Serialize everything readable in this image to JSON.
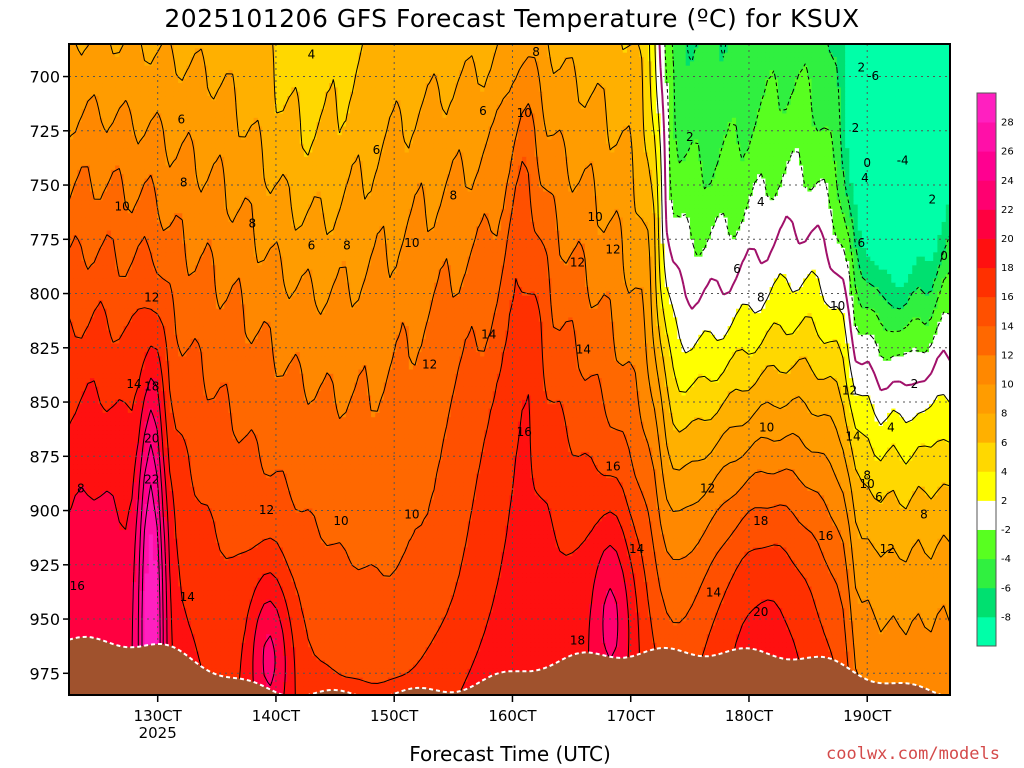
{
  "chart_data": {
    "type": "heatmap",
    "title": "2025101206 GFS Forecast Temperature (ºC) for KSUX",
    "xlabel": "Forecast Time (UTC)",
    "ylabel": "",
    "y_axis": {
      "ticks": [
        700,
        725,
        750,
        775,
        800,
        825,
        850,
        875,
        900,
        925,
        950,
        975
      ],
      "range": [
        685,
        985
      ],
      "inverted": true
    },
    "x_axis": {
      "ticks": [
        "130CT",
        "140CT",
        "150CT",
        "160CT",
        "170CT",
        "180CT",
        "190CT"
      ],
      "sublabel": "2025",
      "range_days": [
        12.25,
        19.7
      ]
    },
    "colorbar": {
      "levels": [
        -10,
        -8,
        -6,
        -4,
        -2,
        2,
        4,
        6,
        8,
        10,
        12,
        14,
        16,
        18,
        20,
        22,
        24,
        26,
        28,
        30
      ],
      "tick_labels": [
        "-8",
        "-6",
        "-4",
        "-2",
        "2",
        "4",
        "6",
        "8",
        "10",
        "12",
        "14",
        "16",
        "18",
        "20",
        "22",
        "24",
        "26",
        "28"
      ],
      "colors": [
        "#00ffa8",
        "#00e070",
        "#30f040",
        "#58ff20",
        "#ffffff",
        "#ffff00",
        "#ffd800",
        "#ffb000",
        "#ff9c00",
        "#ff8800",
        "#ff6800",
        "#ff5000",
        "#ff3000",
        "#ff1010",
        "#ff0040",
        "#ff0070",
        "#ff0090",
        "#ff10a8",
        "#ff20c0"
      ]
    },
    "contour_labels": [
      {
        "t": 12.7,
        "p": 760,
        "v": 10
      },
      {
        "t": 12.95,
        "p": 802,
        "v": 12
      },
      {
        "t": 12.8,
        "p": 842,
        "v": 14
      },
      {
        "t": 12.95,
        "p": 843,
        "v": 18
      },
      {
        "t": 12.95,
        "p": 867,
        "v": 20
      },
      {
        "t": 12.95,
        "p": 886,
        "v": 22
      },
      {
        "t": 12.35,
        "p": 890,
        "v": 8
      },
      {
        "t": 12.32,
        "p": 935,
        "v": 16
      },
      {
        "t": 13.25,
        "p": 940,
        "v": 14
      },
      {
        "t": 13.2,
        "p": 720,
        "v": 6
      },
      {
        "t": 13.22,
        "p": 749,
        "v": 8
      },
      {
        "t": 13.8,
        "p": 768,
        "v": 8
      },
      {
        "t": 14.3,
        "p": 690,
        "v": 4
      },
      {
        "t": 14.3,
        "p": 778,
        "v": 6
      },
      {
        "t": 14.6,
        "p": 778,
        "v": 8
      },
      {
        "t": 14.85,
        "p": 734,
        "v": 6
      },
      {
        "t": 15.15,
        "p": 777,
        "v": 10
      },
      {
        "t": 15.75,
        "p": 716,
        "v": 6
      },
      {
        "t": 15.5,
        "p": 755,
        "v": 8
      },
      {
        "t": 16.2,
        "p": 689,
        "v": 8
      },
      {
        "t": 16.1,
        "p": 717,
        "v": 10
      },
      {
        "t": 16.7,
        "p": 765,
        "v": 10
      },
      {
        "t": 16.85,
        "p": 780,
        "v": 12
      },
      {
        "t": 16.55,
        "p": 786,
        "v": 12
      },
      {
        "t": 16.6,
        "p": 826,
        "v": 14
      },
      {
        "t": 15.8,
        "p": 819,
        "v": 14
      },
      {
        "t": 15.3,
        "p": 833,
        "v": 12
      },
      {
        "t": 16.1,
        "p": 864,
        "v": 16
      },
      {
        "t": 16.85,
        "p": 880,
        "v": 16
      },
      {
        "t": 13.92,
        "p": 900,
        "v": 12
      },
      {
        "t": 14.55,
        "p": 905,
        "v": 10
      },
      {
        "t": 15.15,
        "p": 902,
        "v": 10
      },
      {
        "t": 17.05,
        "p": 918,
        "v": 14
      },
      {
        "t": 17.65,
        "p": 890,
        "v": 12
      },
      {
        "t": 18.15,
        "p": 862,
        "v": 10
      },
      {
        "t": 17.7,
        "p": 938,
        "v": 14
      },
      {
        "t": 18.1,
        "p": 947,
        "v": 20
      },
      {
        "t": 18.1,
        "p": 905,
        "v": 18
      },
      {
        "t": 18.65,
        "p": 912,
        "v": 16
      },
      {
        "t": 16.55,
        "p": 960,
        "v": 18
      },
      {
        "t": 17.5,
        "p": 728,
        "v": 2
      },
      {
        "t": 18.1,
        "p": 758,
        "v": 4
      },
      {
        "t": 17.9,
        "p": 789,
        "v": 6
      },
      {
        "t": 18.1,
        "p": 802,
        "v": 8
      },
      {
        "t": 18.75,
        "p": 806,
        "v": 10
      },
      {
        "t": 18.85,
        "p": 845,
        "v": 12
      },
      {
        "t": 18.88,
        "p": 866,
        "v": 14
      },
      {
        "t": 19.0,
        "p": 888,
        "v": 10
      },
      {
        "t": 19.0,
        "p": 884,
        "v": 8
      },
      {
        "t": 19.1,
        "p": 894,
        "v": 6
      },
      {
        "t": 19.17,
        "p": 918,
        "v": 12
      },
      {
        "t": 19.48,
        "p": 902,
        "v": 8
      },
      {
        "t": 19.2,
        "p": 862,
        "v": 4
      },
      {
        "t": 19.4,
        "p": 842,
        "v": 2
      },
      {
        "t": 18.95,
        "p": 696,
        "v": 2
      },
      {
        "t": 19.05,
        "p": 700,
        "v": -6
      },
      {
        "t": 19.3,
        "p": 739,
        "v": -4
      },
      {
        "t": 19.55,
        "p": 757,
        "v": 2
      },
      {
        "t": 19.0,
        "p": 740,
        "v": 0
      },
      {
        "t": 18.98,
        "p": 747,
        "v": 4
      },
      {
        "t": 18.9,
        "p": 724,
        "v": 2
      },
      {
        "t": 18.95,
        "p": 777,
        "v": 6
      },
      {
        "t": 19.65,
        "p": 783,
        "v": 0
      }
    ]
  },
  "credit": "coolwx.com/models"
}
